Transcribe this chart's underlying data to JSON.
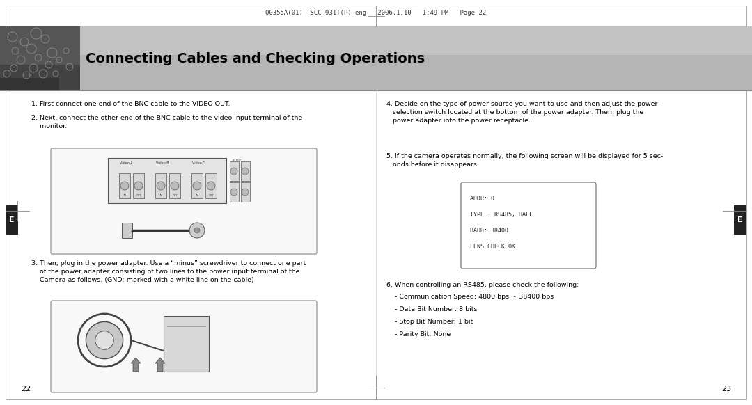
{
  "bg_color": "#ffffff",
  "header_text": "00355A(01)  SCC-931T(P)-eng   2006.1.10   1:49 PM   Page 22",
  "header_font_size": 6.5,
  "header_color": "#333333",
  "banner_text": "Connecting Cables and Checking Operations",
  "banner_text_color": "#000000",
  "banner_font_size": 14,
  "left_tab_text": "E",
  "right_tab_text": "E",
  "tab_text_color": "#ffffff",
  "tab_font_size": 8,
  "body_font_size": 6.8,
  "body_color": "#000000",
  "step1_text": "1. First connect one end of the BNC cable to the VIDEO OUT.",
  "step2_text": "2. Next, connect the other end of the BNC cable to the video input terminal of the\n    monitor.",
  "step3_text": "3. Then, plug in the power adapter. Use a “minus” screwdriver to connect one part\n    of the power adapter consisting of two lines to the power input terminal of the\n    Camera as follows. (GND: marked with a white line on the cable)",
  "step4_text": "4. Decide on the type of power source you want to use and then adjust the power\n   selection switch located at the bottom of the power adapter. Then, plug the\n   power adapter into the power receptacle.",
  "step5_text": "5. If the camera operates normally, the following screen will be displayed for 5 sec-\n   onds before it disappears.",
  "step6_text": "6. When controlling an RS485, please check the following:",
  "step6_bullets": [
    "- Communication Speed: 4800 bps ~ 38400 bps",
    "- Data Bit Number: 8 bits",
    "- Stop Bit Number: 1 bit",
    "- Parity Bit: None"
  ],
  "screen_box_text": [
    "ADDR: 0",
    "TYPE : RS485, HALF",
    "BAUD: 38400",
    "LENS CHECK OK!"
  ],
  "page_num_left": "22",
  "page_num_right": "23",
  "crosshair_color": "#888888",
  "outer_border_color": "#aaaaaa"
}
